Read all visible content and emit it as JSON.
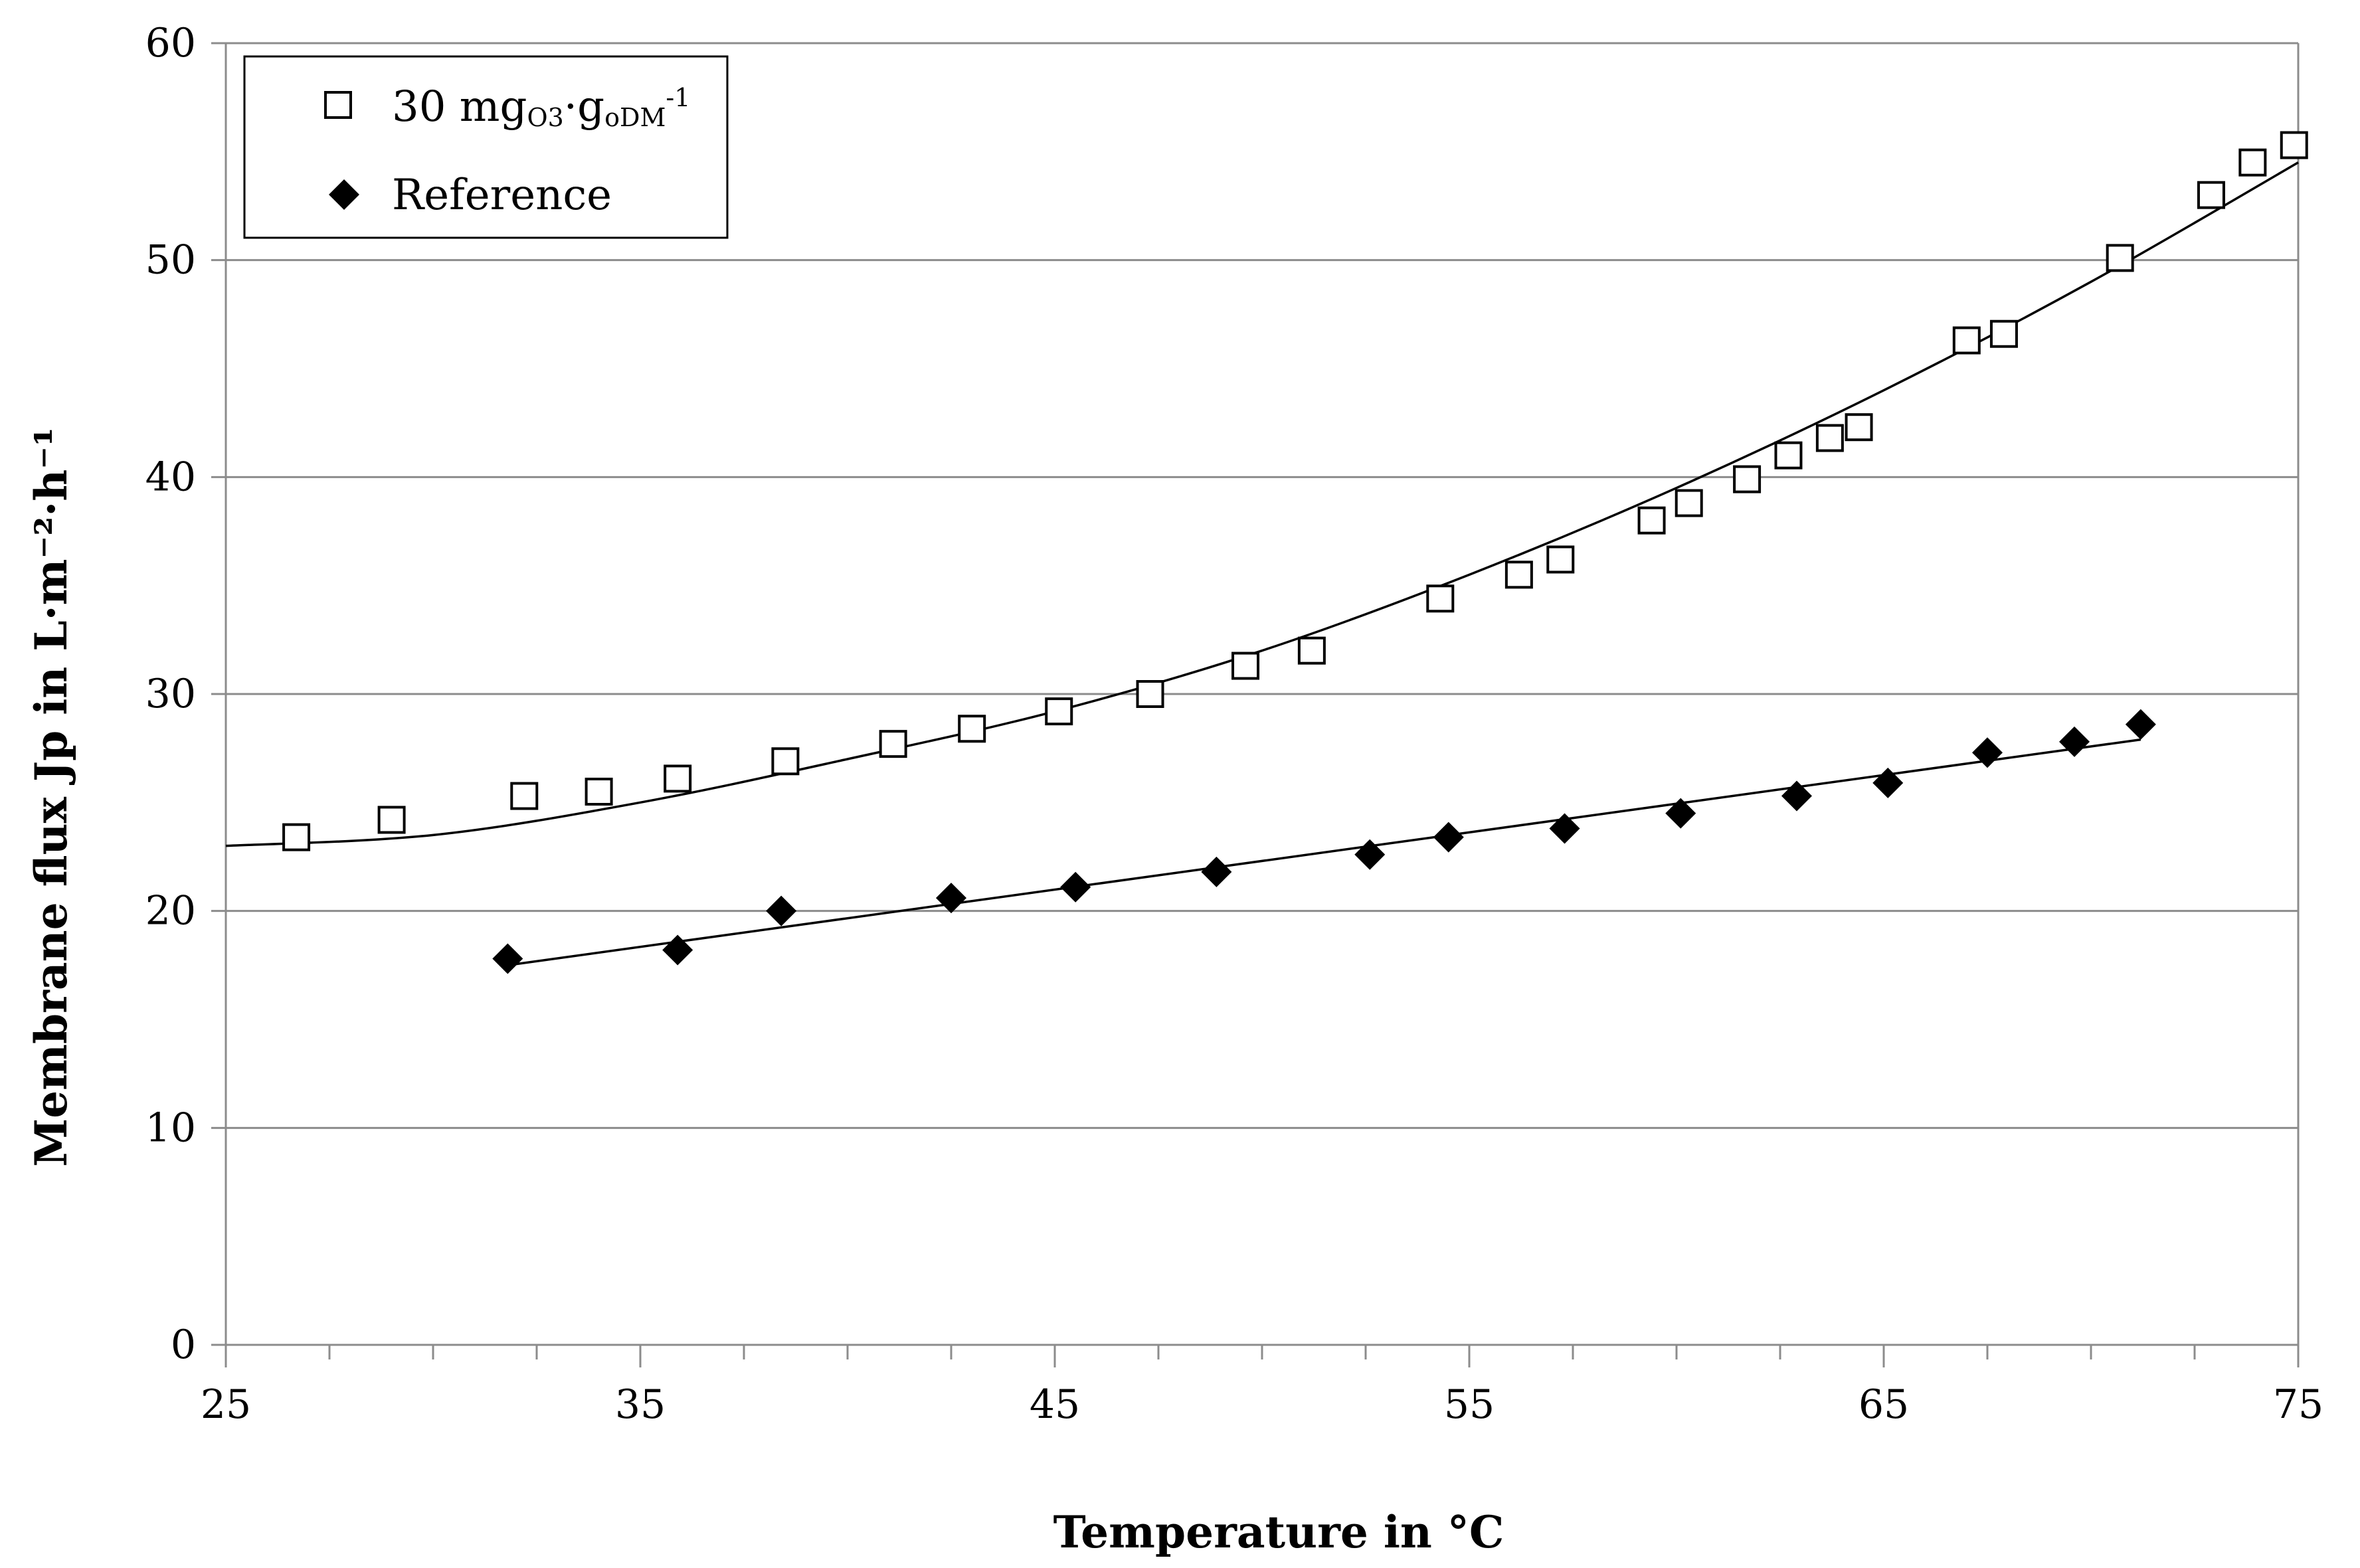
{
  "chart_data": {
    "type": "scatter",
    "title": "",
    "xlabel": "Temperature in °C",
    "ylabel": "Membrane flux Jp in L·m⁻²·h⁻¹",
    "xlim": [
      25,
      75
    ],
    "ylim": [
      0,
      60
    ],
    "x_ticks": [
      25,
      35,
      45,
      55,
      65,
      75
    ],
    "x_tick_labels": [
      "25",
      "35",
      "45",
      "55",
      "65",
      "75"
    ],
    "y_ticks": [
      0,
      10,
      20,
      30,
      40,
      50,
      60
    ],
    "y_tick_labels": [
      "0",
      "10",
      "20",
      "30",
      "40",
      "50",
      "60"
    ],
    "grid": "horizontal",
    "legend_position": "top-left",
    "legend": {
      "ozone": {
        "main": "30 mg",
        "sub1": "O3",
        "dot": "·g",
        "sub2": "oDM",
        "sup": "-1"
      },
      "reference": "Reference"
    },
    "series": [
      {
        "name": "30 mgO3·goDM-1",
        "marker": "open-square",
        "x": [
          26.7,
          29.0,
          32.2,
          34.0,
          35.9,
          38.5,
          41.1,
          43.0,
          45.1,
          47.3,
          49.6,
          51.2,
          54.3,
          56.2,
          57.2,
          59.4,
          60.3,
          61.7,
          62.7,
          63.7,
          64.4,
          67.0,
          67.9,
          70.7,
          72.9,
          73.9,
          74.9
        ],
        "y": [
          23.4,
          24.2,
          25.3,
          25.5,
          26.1,
          26.9,
          27.7,
          28.4,
          29.2,
          30.0,
          31.3,
          32.0,
          34.4,
          35.5,
          36.2,
          38.0,
          38.8,
          39.9,
          41.0,
          41.8,
          42.3,
          46.3,
          46.6,
          50.1,
          53.0,
          54.5,
          55.3
        ]
      },
      {
        "name": "Reference",
        "marker": "filled-diamond",
        "x": [
          31.8,
          35.9,
          38.4,
          42.5,
          45.5,
          48.9,
          52.6,
          54.5,
          57.3,
          60.1,
          62.9,
          65.1,
          67.5,
          69.6,
          71.2
        ],
        "y": [
          17.8,
          18.2,
          20.0,
          20.6,
          21.1,
          21.8,
          22.6,
          23.4,
          23.8,
          24.5,
          25.3,
          25.9,
          27.3,
          27.8,
          28.6
        ]
      }
    ],
    "trendlines": [
      {
        "series": "30 mgO3·goDM-1",
        "type": "polynomial",
        "x_range": [
          25,
          75
        ],
        "points": [
          [
            25,
            23.0
          ],
          [
            30,
            23.5
          ],
          [
            35,
            25.0
          ],
          [
            40,
            27.0
          ],
          [
            45,
            29.2
          ],
          [
            50,
            32.0
          ],
          [
            55,
            35.5
          ],
          [
            60,
            39.5
          ],
          [
            65,
            44.0
          ],
          [
            70,
            49.0
          ],
          [
            75,
            54.5
          ]
        ]
      },
      {
        "series": "Reference",
        "type": "linear",
        "x_range": [
          31.8,
          71.2
        ],
        "points": [
          [
            31.8,
            17.5
          ],
          [
            71.2,
            27.9
          ]
        ]
      }
    ]
  }
}
